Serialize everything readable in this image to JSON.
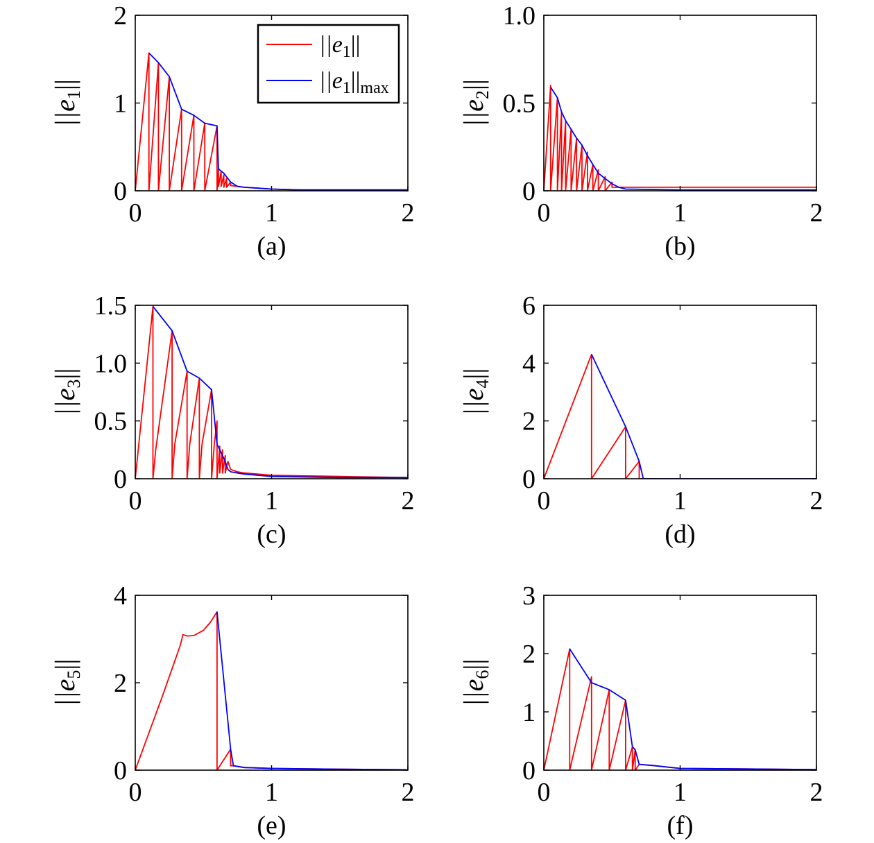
{
  "chart_data": [
    {
      "type": "line",
      "panel": "(a)",
      "ylabel": {
        "base": "||e",
        "sub": "1",
        "close": "||"
      },
      "xlim": [
        0,
        2
      ],
      "ylim": [
        0,
        2
      ],
      "xticks": [
        0,
        1,
        2
      ],
      "xtick_labels": [
        "0",
        "1",
        "2"
      ],
      "yticks": [
        0,
        1,
        2
      ],
      "ytick_labels": [
        "0",
        "1",
        "2"
      ],
      "legend": {
        "placement": "top-right",
        "entries": [
          {
            "base": "||e",
            "sub": "1",
            "close": "||",
            "close_sub": "",
            "color": "#ff0000"
          },
          {
            "base": "||e",
            "sub": "1",
            "close": "||",
            "close_sub": "max",
            "color": "#0000ff"
          }
        ]
      },
      "series": [
        {
          "color": "#ff0000",
          "x": [
            0,
            0.1,
            0.1,
            0.17,
            0.17,
            0.25,
            0.25,
            0.34,
            0.34,
            0.43,
            0.43,
            0.51,
            0.51,
            0.6,
            0.6,
            0.61,
            0.61,
            0.63,
            0.63,
            0.65,
            0.65,
            0.67,
            0.67,
            0.7,
            0.7,
            0.75,
            0.8,
            0.9,
            1,
            1.2,
            1.5,
            2
          ],
          "y": [
            0,
            1.57,
            0,
            1.46,
            0,
            1.3,
            0,
            0.93,
            0,
            0.86,
            0,
            0.77,
            0,
            0.74,
            0,
            0.25,
            0.05,
            0.22,
            0.05,
            0.18,
            0.04,
            0.14,
            0.04,
            0.1,
            0.06,
            0.05,
            0.04,
            0.03,
            0.02,
            0.01,
            0.01,
            0.01
          ]
        },
        {
          "color": "#0000ff",
          "x": [
            0.1,
            0.17,
            0.25,
            0.34,
            0.43,
            0.51,
            0.6,
            0.61,
            0.65,
            0.7,
            0.75,
            0.8,
            0.9,
            1,
            1.2,
            1.5,
            2
          ],
          "y": [
            1.57,
            1.46,
            1.3,
            0.93,
            0.86,
            0.77,
            0.74,
            0.25,
            0.2,
            0.1,
            0.05,
            0.04,
            0.03,
            0.02,
            0.01,
            0.01,
            0.01
          ]
        }
      ]
    },
    {
      "type": "line",
      "panel": "(b)",
      "ylabel": {
        "base": "||e",
        "sub": "2",
        "close": "||"
      },
      "xlim": [
        0,
        2
      ],
      "ylim": [
        0,
        1
      ],
      "xticks": [
        0,
        1,
        2
      ],
      "xtick_labels": [
        "0",
        "1",
        "2"
      ],
      "yticks": [
        0,
        0.5,
        1
      ],
      "ytick_labels": [
        "0",
        "0.5",
        "1.0"
      ],
      "series": [
        {
          "color": "#ff0000",
          "x": [
            0,
            0.05,
            0.05,
            0.1,
            0.1,
            0.13,
            0.13,
            0.16,
            0.16,
            0.2,
            0.2,
            0.24,
            0.24,
            0.28,
            0.28,
            0.32,
            0.32,
            0.36,
            0.36,
            0.4,
            0.4,
            0.45,
            0.45,
            0.5,
            0.5,
            0.55,
            0.6,
            1,
            1.5,
            2
          ],
          "y": [
            0,
            0.6,
            0,
            0.53,
            0,
            0.45,
            0,
            0.4,
            0,
            0.35,
            0,
            0.3,
            0,
            0.26,
            0,
            0.22,
            0,
            0.15,
            0,
            0.12,
            0,
            0.08,
            0,
            0.05,
            0.02,
            0.02,
            0.02,
            0.02,
            0.02,
            0.02
          ]
        },
        {
          "color": "#0000ff",
          "x": [
            0.05,
            0.1,
            0.13,
            0.16,
            0.2,
            0.24,
            0.28,
            0.32,
            0.36,
            0.4,
            0.45,
            0.5,
            0.55,
            0.6,
            1,
            1.5,
            2
          ],
          "y": [
            0.59,
            0.53,
            0.45,
            0.4,
            0.35,
            0.3,
            0.26,
            0.2,
            0.15,
            0.1,
            0.07,
            0.04,
            0.02,
            0.01,
            0.005,
            0.005,
            0.005
          ]
        }
      ]
    },
    {
      "type": "line",
      "panel": "(c)",
      "ylabel": {
        "base": "||e",
        "sub": "3",
        "close": "||"
      },
      "xlim": [
        0,
        2
      ],
      "ylim": [
        0,
        1.5
      ],
      "xticks": [
        0,
        1,
        2
      ],
      "xtick_labels": [
        "0",
        "1",
        "2"
      ],
      "yticks": [
        0,
        0.5,
        1,
        1.5
      ],
      "ytick_labels": [
        "0",
        "0.5",
        "1.0",
        "1.5"
      ],
      "series": [
        {
          "color": "#ff0000",
          "x": [
            0,
            0.13,
            0.13,
            0.15,
            0.27,
            0.27,
            0.29,
            0.38,
            0.38,
            0.4,
            0.47,
            0.47,
            0.49,
            0.56,
            0.56,
            0.58,
            0.6,
            0.6,
            0.62,
            0.62,
            0.64,
            0.64,
            0.66,
            0.66,
            0.68,
            0.7,
            0.75,
            0.8,
            0.9,
            1,
            1.5,
            2
          ],
          "y": [
            0,
            1.49,
            0,
            0.25,
            1.28,
            0,
            0.3,
            0.93,
            0,
            0.3,
            0.87,
            0,
            0.3,
            0.77,
            0,
            0.3,
            0.5,
            0,
            0.28,
            0.05,
            0.25,
            0.05,
            0.2,
            0.05,
            0.15,
            0.08,
            0.06,
            0.05,
            0.04,
            0.03,
            0.02,
            0.01
          ]
        },
        {
          "color": "#0000ff",
          "x": [
            0.13,
            0.27,
            0.38,
            0.47,
            0.56,
            0.6,
            0.62,
            0.64,
            0.66,
            0.68,
            0.7,
            0.75,
            0.8,
            0.9,
            1,
            1.5,
            2
          ],
          "y": [
            1.49,
            1.28,
            0.93,
            0.87,
            0.77,
            0.3,
            0.25,
            0.2,
            0.15,
            0.08,
            0.06,
            0.05,
            0.04,
            0.03,
            0.02,
            0.01,
            0.01
          ]
        }
      ]
    },
    {
      "type": "line",
      "panel": "(d)",
      "ylabel": {
        "base": "||e",
        "sub": "4",
        "close": "||"
      },
      "xlim": [
        0,
        2
      ],
      "ylim": [
        0,
        6
      ],
      "xticks": [
        0,
        1,
        2
      ],
      "xtick_labels": [
        "0",
        "1",
        "2"
      ],
      "yticks": [
        0,
        2,
        4,
        6
      ],
      "ytick_labels": [
        "0",
        "2",
        "4",
        "6"
      ],
      "series": [
        {
          "color": "#ff0000",
          "x": [
            0,
            0.35,
            0.35,
            0.6,
            0.6,
            0.7,
            0.7,
            0.72,
            1,
            1.5,
            2
          ],
          "y": [
            0,
            4.3,
            0,
            1.8,
            0,
            0.6,
            0,
            0,
            0,
            0,
            0
          ]
        },
        {
          "color": "#0000ff",
          "x": [
            0.35,
            0.6,
            0.7,
            0.73,
            1,
            1.5,
            2
          ],
          "y": [
            4.3,
            1.8,
            0.6,
            0,
            0,
            0,
            0
          ]
        }
      ]
    },
    {
      "type": "line",
      "panel": "(e)",
      "ylabel": {
        "base": "||e",
        "sub": "5",
        "close": "||"
      },
      "xlim": [
        0,
        2
      ],
      "ylim": [
        0,
        4
      ],
      "xticks": [
        0,
        1,
        2
      ],
      "xtick_labels": [
        "0",
        "1",
        "2"
      ],
      "yticks": [
        0,
        2,
        4
      ],
      "ytick_labels": [
        "0",
        "2",
        "4"
      ],
      "series": [
        {
          "color": "#ff0000",
          "x": [
            0,
            0.2,
            0.33,
            0.35,
            0.38,
            0.43,
            0.5,
            0.55,
            0.6,
            0.6,
            0.7,
            0.7,
            0.72,
            0.8,
            1,
            1.5,
            2
          ],
          "y": [
            0,
            1.7,
            2.85,
            3.1,
            3.07,
            3.08,
            3.2,
            3.38,
            3.62,
            0,
            0.48,
            0.1,
            0.1,
            0.06,
            0.04,
            0.02,
            0.01
          ]
        },
        {
          "color": "#0000ff",
          "x": [
            0.6,
            0.7,
            0.72,
            0.8,
            1,
            1.5,
            2
          ],
          "y": [
            3.62,
            0.48,
            0.1,
            0.06,
            0.04,
            0.02,
            0.01
          ]
        }
      ]
    },
    {
      "type": "line",
      "panel": "(f)",
      "ylabel": {
        "base": "||e",
        "sub": "6",
        "close": "||"
      },
      "xlim": [
        0,
        2
      ],
      "ylim": [
        0,
        3
      ],
      "xticks": [
        0,
        1,
        2
      ],
      "xtick_labels": [
        "0",
        "1",
        "2"
      ],
      "yticks": [
        0,
        1,
        2,
        3
      ],
      "ytick_labels": [
        "0",
        "1",
        "2",
        "3"
      ],
      "series": [
        {
          "color": "#ff0000",
          "x": [
            0,
            0.19,
            0.19,
            0.35,
            0.35,
            0.48,
            0.48,
            0.6,
            0.6,
            0.65,
            0.65,
            0.67,
            0.67,
            0.7,
            0.7,
            0.8,
            1,
            1.5,
            2
          ],
          "y": [
            0,
            2.08,
            0,
            1.6,
            0,
            1.38,
            0,
            1.2,
            0,
            0.4,
            0,
            0.35,
            0,
            0.1,
            0.1,
            0.08,
            0.03,
            0.02,
            0.01
          ]
        },
        {
          "color": "#0000ff",
          "x": [
            0.19,
            0.35,
            0.48,
            0.6,
            0.65,
            0.67,
            0.7,
            0.8,
            1,
            1.5,
            2
          ],
          "y": [
            2.08,
            1.5,
            1.38,
            1.2,
            0.4,
            0.35,
            0.1,
            0.08,
            0.03,
            0.02,
            0.01
          ]
        }
      ]
    }
  ]
}
